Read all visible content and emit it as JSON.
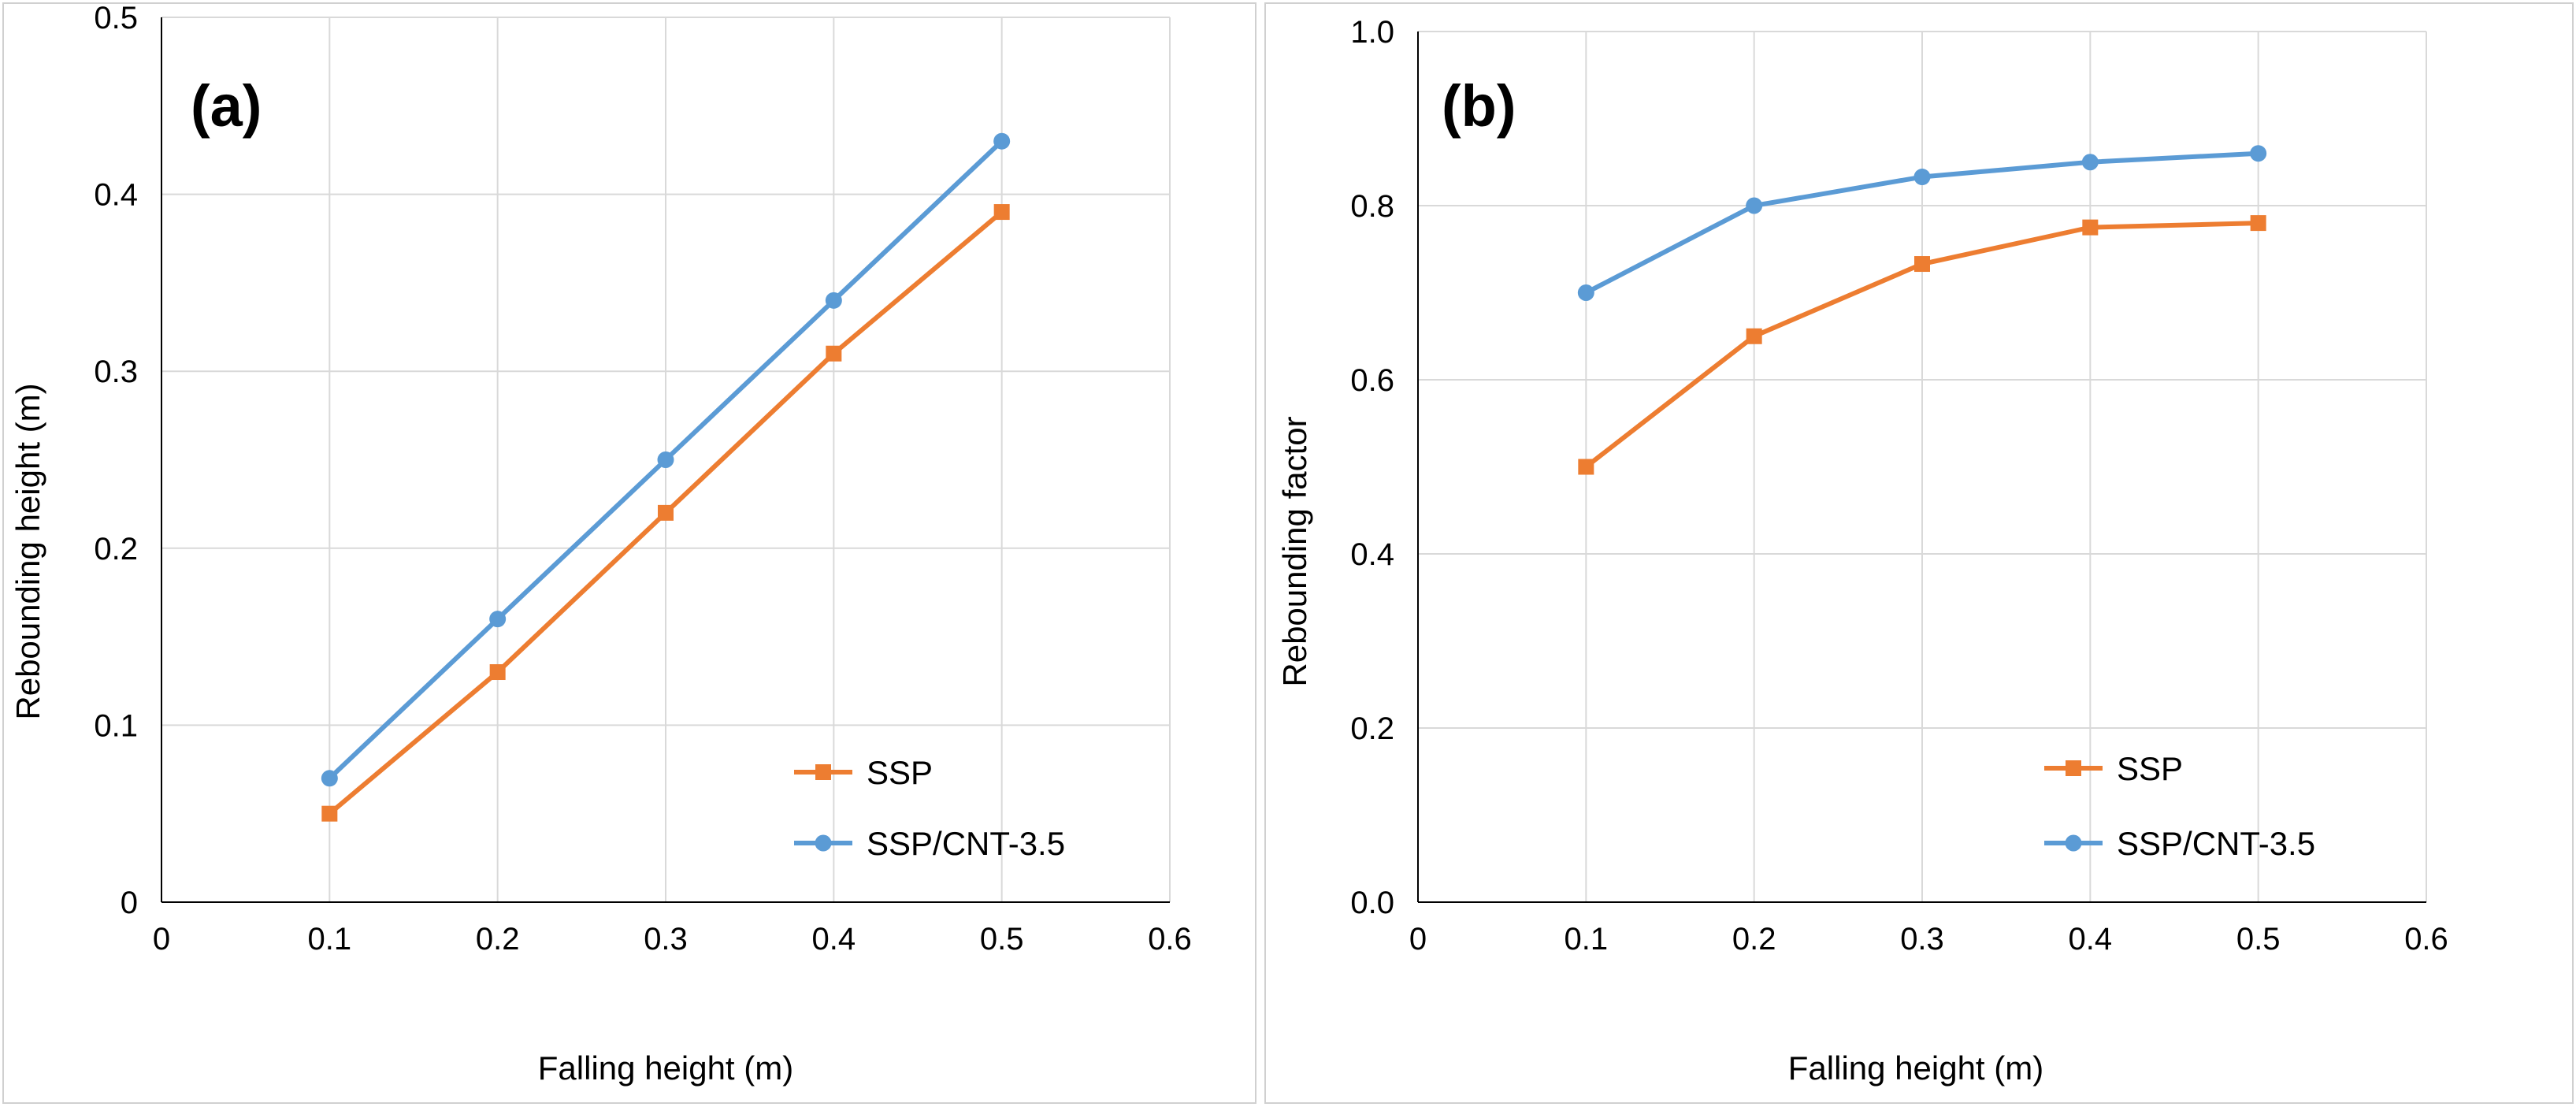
{
  "chart_data": [
    {
      "type": "line",
      "panel_label": "(a)",
      "title": "",
      "xlabel": "Falling height (m)",
      "ylabel": "Rebounding height (m)",
      "xlim": [
        0,
        0.6
      ],
      "ylim": [
        0,
        0.5
      ],
      "x_ticks": [
        0,
        0.1,
        0.2,
        0.3,
        0.4,
        0.5,
        0.6
      ],
      "y_ticks": [
        0,
        0.1,
        0.2,
        0.3,
        0.4,
        0.5
      ],
      "x_tick_labels": [
        "0",
        "0.1",
        "0.2",
        "0.3",
        "0.4",
        "0.5",
        "0.6"
      ],
      "y_tick_labels": [
        "0",
        "0.1",
        "0.2",
        "0.3",
        "0.4",
        "0.5"
      ],
      "grid": true,
      "legend_position": "bottom-right",
      "x": [
        0.1,
        0.2,
        0.3,
        0.4,
        0.5
      ],
      "series": [
        {
          "name": "SSP",
          "color": "#ED7D31",
          "marker": "square",
          "values": [
            0.05,
            0.13,
            0.22,
            0.31,
            0.39
          ]
        },
        {
          "name": "SSP/CNT-3.5",
          "color": "#5B9BD5",
          "marker": "circle",
          "values": [
            0.07,
            0.16,
            0.25,
            0.34,
            0.43
          ]
        }
      ]
    },
    {
      "type": "line",
      "panel_label": "(b)",
      "title": "",
      "xlabel": "Falling height (m)",
      "ylabel": "Rebounding factor",
      "xlim": [
        0,
        0.6
      ],
      "ylim": [
        0,
        1.0
      ],
      "x_ticks": [
        0,
        0.1,
        0.2,
        0.3,
        0.4,
        0.5,
        0.6
      ],
      "y_ticks": [
        0,
        0.2,
        0.4,
        0.6,
        0.8,
        1.0
      ],
      "x_tick_labels": [
        "0",
        "0.1",
        "0.2",
        "0.3",
        "0.4",
        "0.5",
        "0.6"
      ],
      "y_tick_labels": [
        "0.0",
        "0.2",
        "0.4",
        "0.6",
        "0.8",
        "1.0"
      ],
      "grid": true,
      "legend_position": "bottom-right",
      "x": [
        0.1,
        0.2,
        0.3,
        0.4,
        0.5
      ],
      "series": [
        {
          "name": "SSP",
          "color": "#ED7D31",
          "marker": "square",
          "values": [
            0.5,
            0.65,
            0.733,
            0.775,
            0.78
          ]
        },
        {
          "name": "SSP/CNT-3.5",
          "color": "#5B9BD5",
          "marker": "circle",
          "values": [
            0.7,
            0.8,
            0.833,
            0.85,
            0.86
          ]
        }
      ]
    }
  ]
}
